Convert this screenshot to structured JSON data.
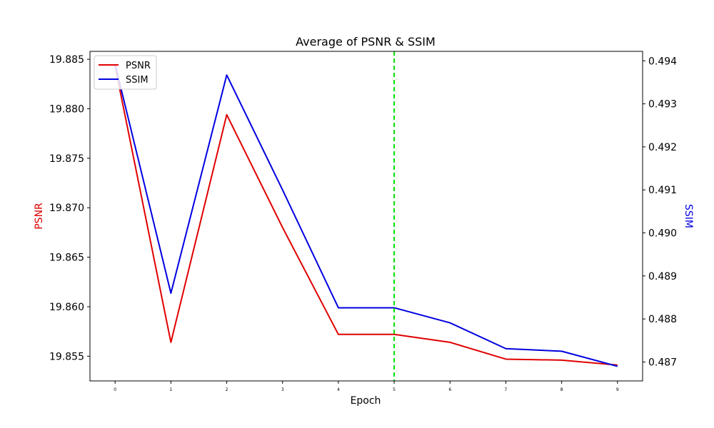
{
  "chart_data": {
    "type": "line",
    "title": "Average of PSNR & SSIM",
    "xlabel": "Epoch",
    "x": [
      0,
      1,
      2,
      3,
      4,
      5,
      6,
      7,
      8,
      9
    ],
    "xlim": [
      -0.45,
      9.45
    ],
    "y_left": {
      "label": "PSNR",
      "color": "#e00000",
      "lim": [
        19.8525,
        19.8858
      ],
      "ticks": [
        "19.855",
        "19.860",
        "19.865",
        "19.870",
        "19.875",
        "19.880",
        "19.885"
      ]
    },
    "y_right": {
      "label": "SSIM",
      "color": "#0000e0",
      "lim": [
        0.48656,
        0.49422
      ],
      "ticks": [
        "0.487",
        "0.488",
        "0.489",
        "0.490",
        "0.491",
        "0.492",
        "0.493",
        "0.494"
      ]
    },
    "series": [
      {
        "name": "PSNR",
        "axis": "left",
        "color": "#e00000",
        "values": [
          19.8843,
          19.8564,
          19.8794,
          19.868,
          19.8572,
          19.8572,
          19.8564,
          19.8547,
          19.8546,
          19.8541
        ]
      },
      {
        "name": "SSIM",
        "axis": "right",
        "color": "#0000e0",
        "values": [
          0.49392,
          0.4886,
          0.49367,
          0.491,
          0.48826,
          0.48826,
          0.48791,
          0.48731,
          0.48725,
          0.4869
        ]
      }
    ],
    "vline": {
      "x": 5,
      "color": "#00dd00",
      "style": "dashed"
    },
    "legend": {
      "placement": "top-left",
      "entries": [
        "PSNR",
        "SSIM"
      ]
    },
    "grid": false
  }
}
